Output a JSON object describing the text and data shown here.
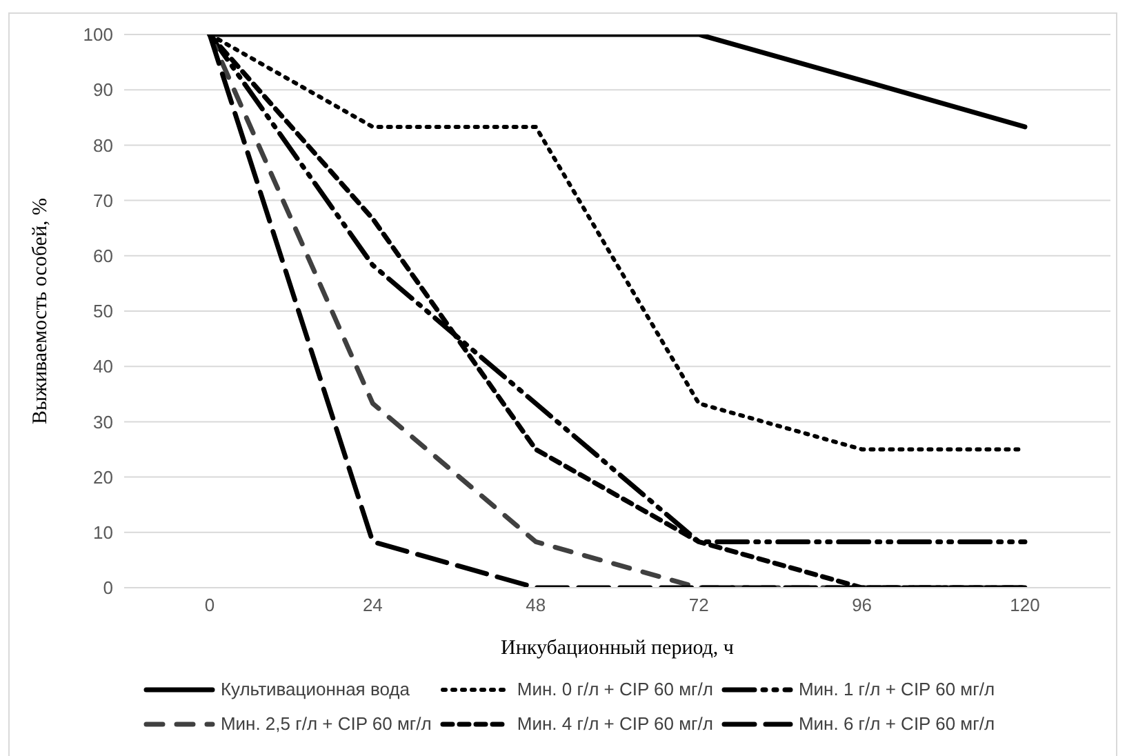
{
  "chart_data": {
    "type": "line",
    "xlabel": "Инкубационный период, ч",
    "ylabel": "Выживаемость особей, %",
    "categories": [
      "0",
      "24",
      "48",
      "72",
      "96",
      "120"
    ],
    "ylim": [
      0,
      100
    ],
    "yticks": [
      0,
      10,
      20,
      30,
      40,
      50,
      60,
      70,
      80,
      90,
      100
    ],
    "grid": "y",
    "legend": "bottom",
    "marker": "none",
    "series": [
      {
        "name": "Культивационная вода",
        "color": "#000000",
        "line_style": "solid",
        "values": [
          100,
          100,
          100,
          100,
          91.7,
          83.3
        ]
      },
      {
        "name": "Мин. 0 г/л + CIP 60 мг/л",
        "color": "#000000",
        "line_style": "dotted",
        "values": [
          100,
          83.3,
          83.3,
          33.3,
          25,
          25
        ]
      },
      {
        "name": "Мин. 1 г/л + CIP 60 мг/л",
        "color": "#000000",
        "line_style": "dashed",
        "values": [
          100,
          58.3,
          33.3,
          8.3,
          8.3,
          8.3
        ]
      },
      {
        "name": "Мин. 2,5 г/л + CIP 60 мг/л",
        "color": "#404040",
        "line_style": "dashed",
        "values": [
          100,
          33.3,
          8.3,
          0,
          0,
          0
        ]
      },
      {
        "name": "Мин. 4 г/л + CIP 60 мг/л",
        "color": "#000000",
        "line_style": "dashed",
        "values": [
          100,
          66.7,
          25,
          8.3,
          0,
          0
        ]
      },
      {
        "name": "Мин. 6 г/л + CIP 60 мг/л",
        "color": "#000000",
        "line_style": "dashed",
        "values": [
          100,
          8.3,
          0,
          0,
          0,
          0
        ]
      }
    ]
  }
}
